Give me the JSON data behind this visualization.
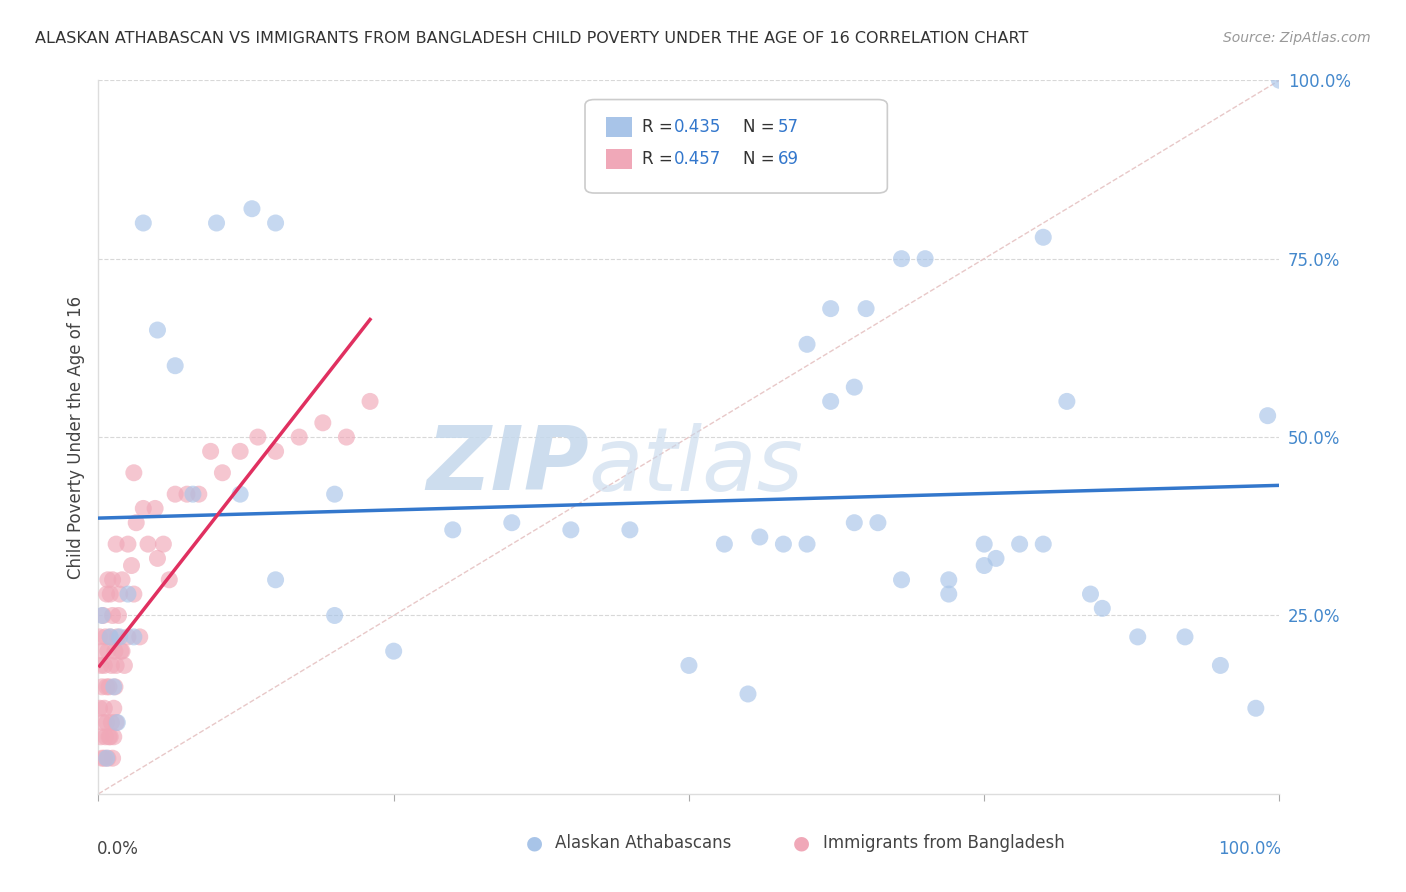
{
  "title": "ALASKAN ATHABASCAN VS IMMIGRANTS FROM BANGLADESH CHILD POVERTY UNDER THE AGE OF 16 CORRELATION CHART",
  "source": "Source: ZipAtlas.com",
  "ylabel": "Child Poverty Under the Age of 16",
  "blue_color": "#a8c4e8",
  "pink_color": "#f0a8b8",
  "trend_blue": "#3377cc",
  "trend_pink": "#e03060",
  "diagonal_color": "#cccccc",
  "grid_color": "#d8d8d8",
  "watermark_zip_color": "#c5d8ec",
  "watermark_atlas_color": "#c5d8ec",
  "blue_x": [
    0.003,
    0.007,
    0.01,
    0.013,
    0.016,
    0.018,
    0.025,
    0.03,
    0.038,
    0.05,
    0.065,
    0.08,
    0.1,
    0.13,
    0.15,
    0.3,
    0.35,
    0.4,
    0.45,
    0.5,
    0.55,
    0.6,
    0.62,
    0.65,
    0.68,
    0.7,
    0.72,
    0.75,
    0.78,
    0.8,
    0.82,
    0.85,
    0.88,
    0.92,
    0.95,
    0.98,
    0.99,
    1.0,
    0.53,
    0.56,
    0.58,
    0.6,
    0.64,
    0.66,
    0.68,
    0.72,
    0.76,
    0.8,
    0.84,
    0.62,
    0.64,
    0.75,
    0.2,
    0.25,
    0.2,
    0.15,
    0.12
  ],
  "blue_y": [
    0.25,
    0.05,
    0.22,
    0.15,
    0.1,
    0.22,
    0.28,
    0.22,
    0.8,
    0.65,
    0.6,
    0.42,
    0.8,
    0.82,
    0.8,
    0.37,
    0.38,
    0.37,
    0.37,
    0.18,
    0.14,
    0.63,
    0.68,
    0.68,
    0.75,
    0.75,
    0.3,
    0.35,
    0.35,
    0.78,
    0.55,
    0.26,
    0.22,
    0.22,
    0.18,
    0.12,
    0.53,
    1.0,
    0.35,
    0.36,
    0.35,
    0.35,
    0.38,
    0.38,
    0.3,
    0.28,
    0.33,
    0.35,
    0.28,
    0.55,
    0.57,
    0.32,
    0.42,
    0.2,
    0.25,
    0.3,
    0.42
  ],
  "pink_x": [
    0.001,
    0.001,
    0.002,
    0.002,
    0.003,
    0.003,
    0.003,
    0.004,
    0.004,
    0.005,
    0.005,
    0.005,
    0.006,
    0.006,
    0.007,
    0.007,
    0.007,
    0.008,
    0.008,
    0.009,
    0.009,
    0.01,
    0.01,
    0.011,
    0.011,
    0.012,
    0.012,
    0.013,
    0.013,
    0.014,
    0.014,
    0.015,
    0.015,
    0.016,
    0.017,
    0.018,
    0.019,
    0.02,
    0.022,
    0.025,
    0.028,
    0.03,
    0.032,
    0.035,
    0.038,
    0.042,
    0.048,
    0.055,
    0.065,
    0.075,
    0.085,
    0.095,
    0.105,
    0.12,
    0.135,
    0.15,
    0.17,
    0.19,
    0.21,
    0.23,
    0.06,
    0.03,
    0.05,
    0.008,
    0.01,
    0.012,
    0.015,
    0.02,
    0.025
  ],
  "pink_y": [
    0.22,
    0.12,
    0.18,
    0.08,
    0.15,
    0.2,
    0.05,
    0.1,
    0.25,
    0.05,
    0.18,
    0.12,
    0.22,
    0.08,
    0.28,
    0.15,
    0.1,
    0.05,
    0.2,
    0.08,
    0.15,
    0.22,
    0.08,
    0.18,
    0.1,
    0.25,
    0.05,
    0.12,
    0.08,
    0.2,
    0.15,
    0.18,
    0.1,
    0.22,
    0.25,
    0.28,
    0.2,
    0.2,
    0.18,
    0.22,
    0.32,
    0.28,
    0.38,
    0.22,
    0.4,
    0.35,
    0.4,
    0.35,
    0.42,
    0.42,
    0.42,
    0.48,
    0.45,
    0.48,
    0.5,
    0.48,
    0.5,
    0.52,
    0.5,
    0.55,
    0.3,
    0.45,
    0.33,
    0.3,
    0.28,
    0.3,
    0.35,
    0.3,
    0.35
  ]
}
